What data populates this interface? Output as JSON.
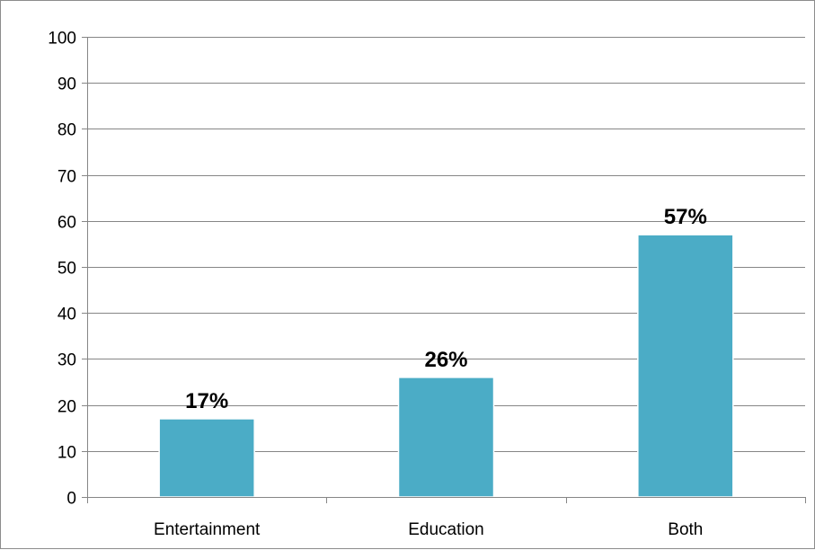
{
  "chart_data": {
    "type": "bar",
    "title": "",
    "xlabel": "",
    "ylabel": "",
    "categories": [
      "Entertainment",
      "Education",
      "Both"
    ],
    "values": [
      17,
      26,
      57
    ],
    "data_labels": [
      "17%",
      "26%",
      "57%"
    ],
    "ylim": [
      0,
      100
    ],
    "y_ticks": [
      0,
      10,
      20,
      30,
      40,
      50,
      60,
      70,
      80,
      90,
      100
    ],
    "grid": true,
    "legend": "none",
    "bar_color": "#4BACC6",
    "bar_edge_color": "#ffffff",
    "grid_color": "#868686",
    "axis_color": "#868686"
  }
}
